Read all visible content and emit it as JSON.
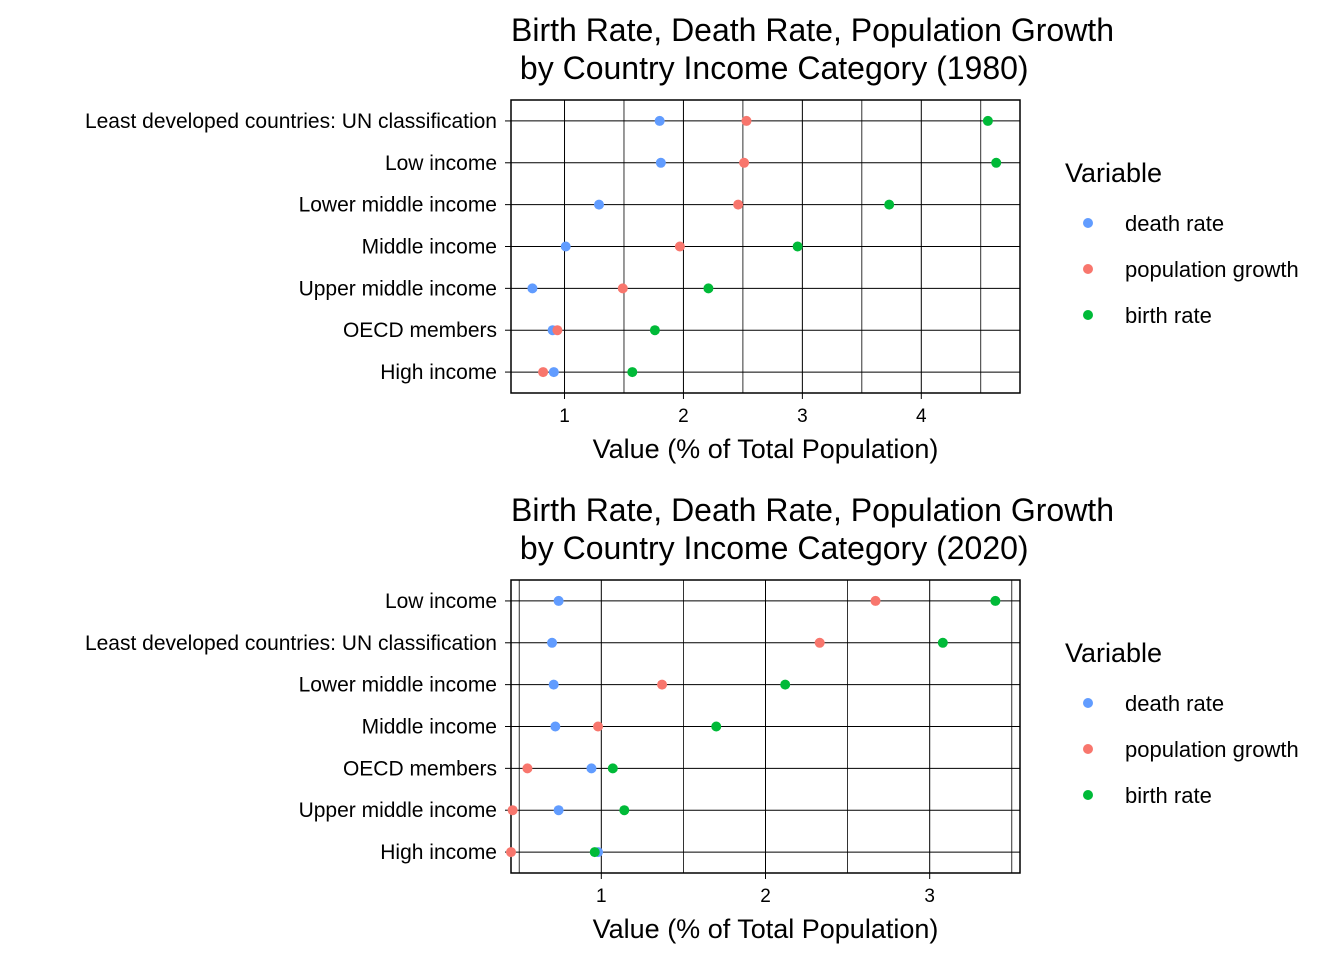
{
  "chart_data": [
    {
      "type": "scatter",
      "title_lines": [
        "Birth Rate, Death Rate, Population Growth",
        " by Country Income Category (1980)"
      ],
      "xlabel": "Value (% of Total Population)",
      "ylabel": "",
      "xlim": [
        0.55,
        4.83
      ],
      "xticks": [
        1,
        2,
        3,
        4
      ],
      "grid": true,
      "legend": {
        "title": "Variable",
        "position": "right",
        "entries": [
          {
            "name": "death rate",
            "color": "#619CFF"
          },
          {
            "name": "population growth",
            "color": "#F8766D"
          },
          {
            "name": "birth rate",
            "color": "#00BA38"
          }
        ]
      },
      "categories": [
        "Least developed countries: UN classification",
        "Low income",
        "Lower middle income",
        "Middle income",
        "Upper middle income",
        "OECD members",
        "High income"
      ],
      "series": [
        {
          "name": "death rate",
          "color": "#619CFF",
          "values": [
            1.8,
            1.81,
            1.29,
            1.01,
            0.73,
            0.9,
            0.91
          ]
        },
        {
          "name": "population growth",
          "color": "#F8766D",
          "values": [
            2.53,
            2.51,
            2.46,
            1.97,
            1.49,
            0.94,
            0.82
          ]
        },
        {
          "name": "birth rate",
          "color": "#00BA38",
          "values": [
            4.56,
            4.63,
            3.73,
            2.96,
            2.21,
            1.76,
            1.57
          ]
        }
      ]
    },
    {
      "type": "scatter",
      "title_lines": [
        "Birth Rate, Death Rate, Population Growth",
        " by Country Income Category (2020)"
      ],
      "xlabel": "Value (% of Total Population)",
      "ylabel": "",
      "xlim": [
        0.45,
        3.55
      ],
      "xticks": [
        1,
        2,
        3
      ],
      "grid": true,
      "legend": {
        "title": "Variable",
        "position": "right",
        "entries": [
          {
            "name": "death rate",
            "color": "#619CFF"
          },
          {
            "name": "population growth",
            "color": "#F8766D"
          },
          {
            "name": "birth rate",
            "color": "#00BA38"
          }
        ]
      },
      "categories": [
        "Low income",
        "Least developed countries: UN classification",
        "Lower middle income",
        "Middle income",
        "OECD members",
        "Upper middle income",
        "High income"
      ],
      "series": [
        {
          "name": "death rate",
          "color": "#619CFF",
          "values": [
            0.74,
            0.7,
            0.71,
            0.72,
            0.94,
            0.74,
            0.98
          ]
        },
        {
          "name": "population growth",
          "color": "#F8766D",
          "values": [
            2.67,
            2.33,
            1.37,
            0.98,
            0.55,
            0.46,
            0.45
          ]
        },
        {
          "name": "birth rate",
          "color": "#00BA38",
          "values": [
            3.4,
            3.08,
            2.12,
            1.7,
            1.07,
            1.14,
            0.96
          ]
        }
      ]
    }
  ]
}
